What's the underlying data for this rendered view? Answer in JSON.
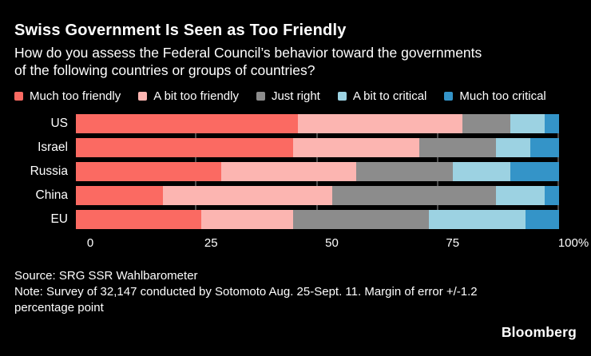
{
  "header": {
    "title": "Swiss Government Is Seen as Too Friendly",
    "subtitle": "How do you assess the Federal Council’s behavior toward the governments of the following countries or groups of countries?"
  },
  "chart_data": {
    "type": "bar",
    "orientation": "horizontal",
    "stacked": true,
    "unit": "%",
    "categories": [
      "US",
      "Israel",
      "Russia",
      "China",
      "EU"
    ],
    "series": [
      {
        "name": "Much too friendly",
        "color": "#fb6a62",
        "values": [
          46,
          45,
          30,
          18,
          26
        ]
      },
      {
        "name": "A bit too friendly",
        "color": "#fcb5b1",
        "values": [
          34,
          26,
          28,
          35,
          19
        ]
      },
      {
        "name": "Just right",
        "color": "#8c8c8c",
        "values": [
          10,
          16,
          20,
          34,
          28
        ]
      },
      {
        "name": "A bit to critical",
        "color": "#9cd2e2",
        "values": [
          7,
          7,
          12,
          10,
          20
        ]
      },
      {
        "name": "Much too critical",
        "color": "#3494c8",
        "values": [
          3,
          6,
          10,
          3,
          7
        ]
      }
    ],
    "x_ticks": [
      {
        "value": 0,
        "label": "0"
      },
      {
        "value": 25,
        "label": "25"
      },
      {
        "value": 50,
        "label": "50"
      },
      {
        "value": 75,
        "label": "75"
      },
      {
        "value": 100,
        "label": "100%"
      }
    ],
    "grid_values": [
      25,
      50,
      75,
      100
    ],
    "xlim": [
      0,
      100
    ],
    "grid": true,
    "legend_position": "top"
  },
  "footer": {
    "source": "Source: SRG SSR Wahlbarometer",
    "note": "Note: Survey of 32,147 conducted by Sotomoto Aug. 25-Sept. 11. Margin of error +/-1.2 percentage point",
    "brand": "Bloomberg"
  },
  "colors": {
    "background": "#000000",
    "text": "#ffffff",
    "gridline": "#4d4d4d"
  }
}
